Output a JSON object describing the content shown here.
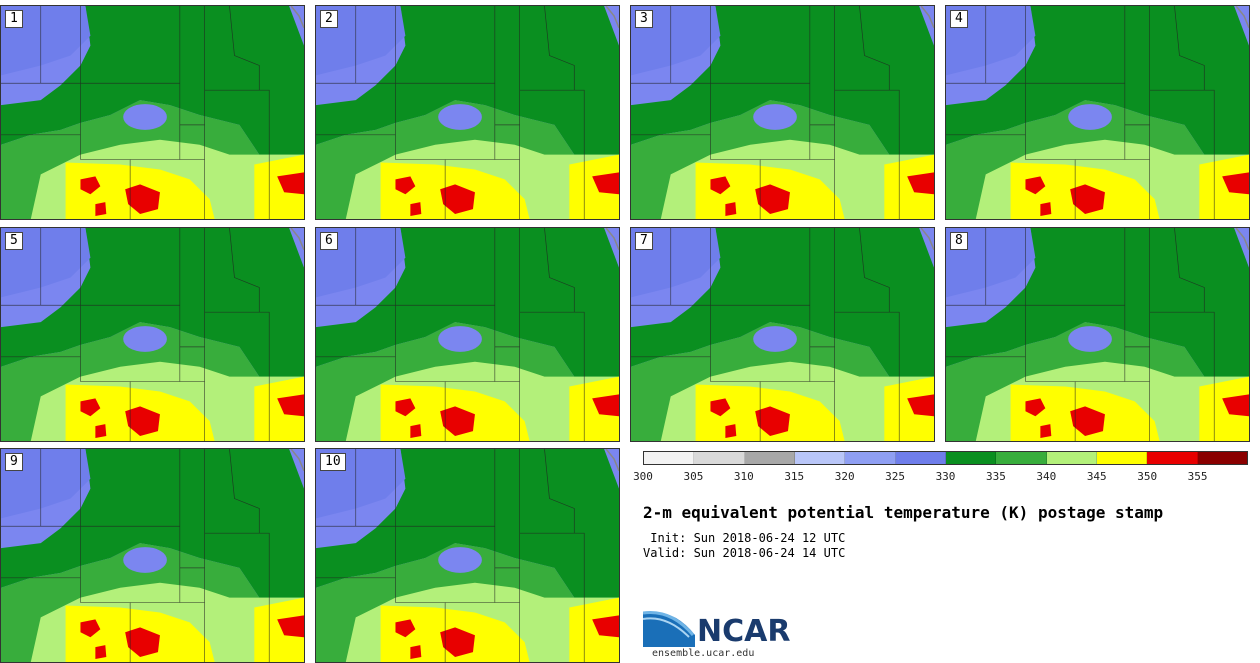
{
  "panels": [
    "1",
    "2",
    "3",
    "4",
    "5",
    "6",
    "7",
    "8",
    "9",
    "10"
  ],
  "colorbar": {
    "colors": [
      "#f3f3f3",
      "#d9d9d9",
      "#a8a8a8",
      "#b9c6f8",
      "#8f9ff3",
      "#6f7eeb",
      "#0a8f20",
      "#38ad3c",
      "#b3f07a",
      "#ffff00",
      "#e80000",
      "#8a0000"
    ],
    "ticks": [
      "300",
      "305",
      "310",
      "315",
      "320",
      "325",
      "330",
      "335",
      "340",
      "345",
      "350",
      "355"
    ]
  },
  "title": "2-m equivalent potential temperature (K) postage stamp",
  "init": " Init: Sun 2018-06-24 12 UTC",
  "valid": "Valid: Sun 2018-06-24 14 UTC",
  "logo": {
    "name": "NCAR",
    "url": "ensemble.ucar.edu",
    "color": "#1a3b6d"
  }
}
